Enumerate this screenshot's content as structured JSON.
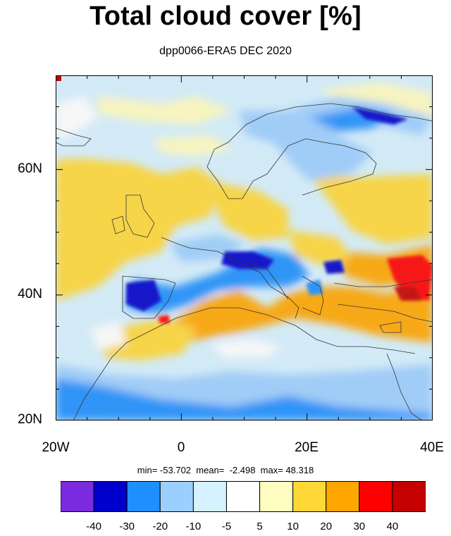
{
  "title": "Total cloud cover [%]",
  "subtitle": "dpp0066-ERA5 DEC 2020",
  "lat_labels": [
    "60N",
    "40N",
    "20N"
  ],
  "lon_labels": [
    "20W",
    "0",
    "20E",
    "40E"
  ],
  "stats": "min= -53.702  mean=  -2.498  max= 48.318",
  "colorbar": {
    "labels": [
      "-40",
      "-30",
      "-20",
      "-10",
      "-5",
      "5",
      "10",
      "20",
      "30",
      "40"
    ],
    "colors": [
      "#7b2be0",
      "#0000cc",
      "#1f8fff",
      "#9ccfff",
      "#d6f1ff",
      "#ffffff",
      "#fffcc0",
      "#ffd838",
      "#ffa600",
      "#ff0000",
      "#c40000"
    ]
  },
  "map_extent": {
    "lon": [
      -20,
      40
    ],
    "lat": [
      20,
      75
    ]
  }
}
